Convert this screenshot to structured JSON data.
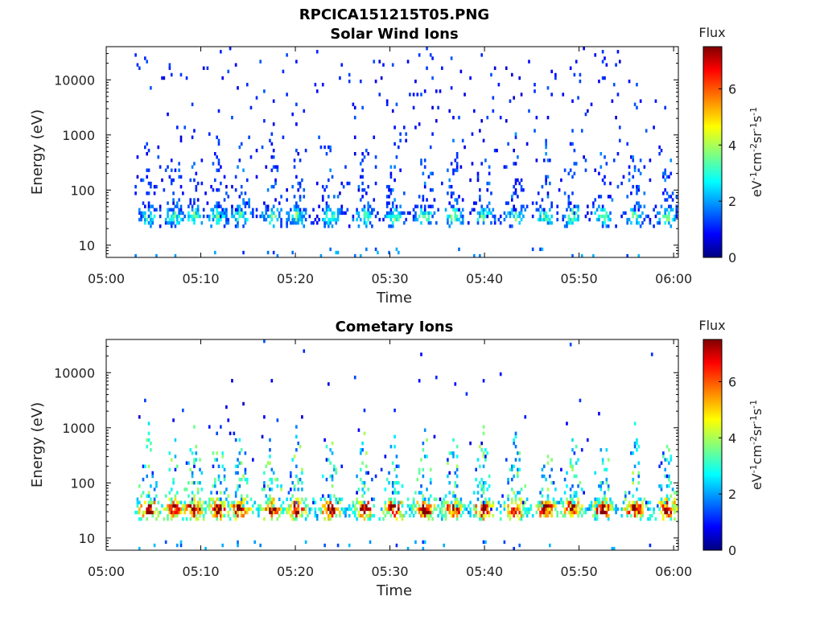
{
  "figure": {
    "title": "RPCICA151215T05.PNG"
  },
  "chart_data": [
    {
      "type": "heatmap",
      "title": "Solar Wind Ions",
      "xlabel": "Time",
      "ylabel": "Energy (eV)",
      "x_ticks": [
        "05:00",
        "05:10",
        "05:20",
        "05:30",
        "05:40",
        "05:50",
        "06:00"
      ],
      "x_range_minutes": [
        0,
        60.5
      ],
      "y_scale": "log",
      "y_ticks": [
        10,
        100,
        1000,
        10000
      ],
      "y_tick_labels": [
        "10",
        "100",
        "1000",
        "10000"
      ],
      "y_range": [
        6,
        40000
      ],
      "colorbar": {
        "title": "Flux",
        "unit_label": "eV-1cm-2sr-1s-1",
        "range": [
          0,
          7.5
        ],
        "ticks": [
          "0",
          "2",
          "4",
          "6"
        ]
      },
      "sweeps_minutes": [
        4.4,
        7.1,
        9.2,
        11.7,
        14.1,
        17.4,
        20.0,
        23.6,
        27.2,
        30.4,
        33.6,
        36.6,
        39.8,
        43.2,
        46.4,
        49.2,
        52.4,
        55.8,
        59.3
      ],
      "core_energy_ev": [
        25,
        45
      ],
      "core_flux": 2.6,
      "sparse_flux": 1.0
    },
    {
      "type": "heatmap",
      "title": "Cometary Ions",
      "xlabel": "Time",
      "ylabel": "Energy (eV)",
      "x_ticks": [
        "05:00",
        "05:10",
        "05:20",
        "05:30",
        "05:40",
        "05:50",
        "06:00"
      ],
      "x_range_minutes": [
        0,
        60.5
      ],
      "y_scale": "log",
      "y_ticks": [
        10,
        100,
        1000,
        10000
      ],
      "y_tick_labels": [
        "10",
        "100",
        "1000",
        "10000"
      ],
      "y_range": [
        6,
        40000
      ],
      "colorbar": {
        "title": "Flux",
        "unit_label": "eV-1cm-2sr-1s-1",
        "range": [
          0,
          7.5
        ],
        "ticks": [
          "0",
          "2",
          "4",
          "6"
        ]
      },
      "sweeps_minutes": [
        4.4,
        7.1,
        9.2,
        11.7,
        14.1,
        17.4,
        20.0,
        23.6,
        27.2,
        30.4,
        33.6,
        36.6,
        39.8,
        43.2,
        46.4,
        49.2,
        52.4,
        55.8,
        59.3
      ],
      "core_energy_ev": [
        25,
        45
      ],
      "core_flux": 5.8,
      "sparse_flux": 1.0
    }
  ]
}
